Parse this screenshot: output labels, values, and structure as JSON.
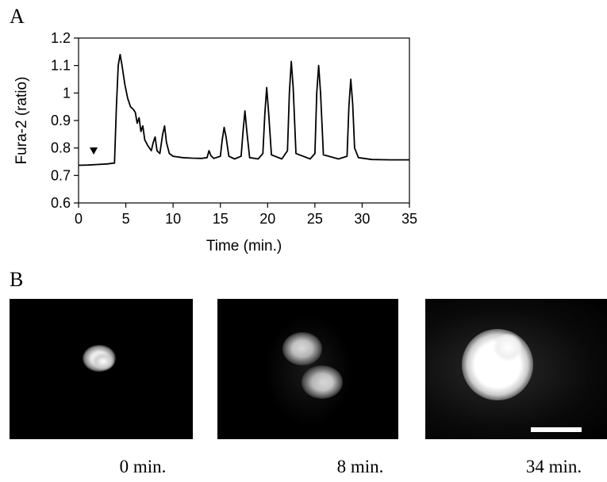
{
  "panel_a_label": "A",
  "panel_b_label": "B",
  "chart_data": {
    "type": "line",
    "title": "",
    "xlabel": "Time (min.)",
    "ylabel": "Fura-2 (ratio)",
    "xlim": [
      0,
      35
    ],
    "ylim": [
      0.6,
      1.2
    ],
    "xticks": [
      0,
      5,
      10,
      15,
      20,
      25,
      30,
      35
    ],
    "yticks": [
      0.6,
      0.7,
      0.8,
      0.9,
      1,
      1.1,
      1.2
    ],
    "xtick_labels": [
      "0",
      "5",
      "10",
      "15",
      "20",
      "25",
      "30",
      "35"
    ],
    "ytick_labels": [
      "0.6",
      "0.7",
      "0.8",
      "0.9",
      "1",
      "1.1",
      "1.2"
    ],
    "grid": false,
    "marker_arrowhead_x": 1.6,
    "series": [
      {
        "x": [
          0,
          1,
          2,
          3,
          3.8,
          4.0,
          4.2,
          4.4,
          4.6,
          4.9,
          5.2,
          5.5,
          5.8,
          6.0,
          6.2,
          6.4,
          6.6,
          6.8,
          7.0,
          7.3,
          7.7,
          7.9,
          8.1,
          8.3,
          8.6,
          8.9,
          9.1,
          9.3,
          9.6,
          10,
          11,
          12,
          13,
          13.6,
          13.8,
          14.0,
          14.3,
          15.0,
          15.2,
          15.4,
          15.6,
          15.9,
          16.5,
          17.2,
          17.4,
          17.6,
          17.8,
          18.1,
          19.0,
          19.5,
          19.7,
          19.9,
          20.1,
          20.4,
          21.5,
          22.1,
          22.3,
          22.5,
          22.7,
          23.0,
          24.5,
          25.0,
          25.2,
          25.4,
          25.6,
          25.9,
          27.5,
          28.4,
          28.6,
          28.8,
          29.0,
          29.2,
          29.6,
          31,
          33,
          35
        ],
        "y": [
          0.737,
          0.738,
          0.74,
          0.742,
          0.745,
          0.95,
          1.1,
          1.14,
          1.1,
          1.03,
          0.98,
          0.95,
          0.94,
          0.93,
          0.89,
          0.91,
          0.86,
          0.88,
          0.83,
          0.81,
          0.79,
          0.82,
          0.84,
          0.79,
          0.78,
          0.85,
          0.88,
          0.82,
          0.78,
          0.77,
          0.765,
          0.763,
          0.762,
          0.765,
          0.79,
          0.772,
          0.762,
          0.77,
          0.83,
          0.875,
          0.84,
          0.77,
          0.76,
          0.77,
          0.86,
          0.935,
          0.86,
          0.765,
          0.76,
          0.78,
          0.92,
          1.02,
          0.93,
          0.775,
          0.76,
          0.79,
          1.0,
          1.115,
          1.02,
          0.78,
          0.76,
          0.78,
          1.0,
          1.1,
          1.0,
          0.775,
          0.76,
          0.77,
          0.95,
          1.05,
          0.96,
          0.8,
          0.765,
          0.758,
          0.757,
          0.757
        ]
      }
    ]
  },
  "images": [
    {
      "caption": "0 min."
    },
    {
      "caption": "8 min."
    },
    {
      "caption": "34 min."
    }
  ]
}
